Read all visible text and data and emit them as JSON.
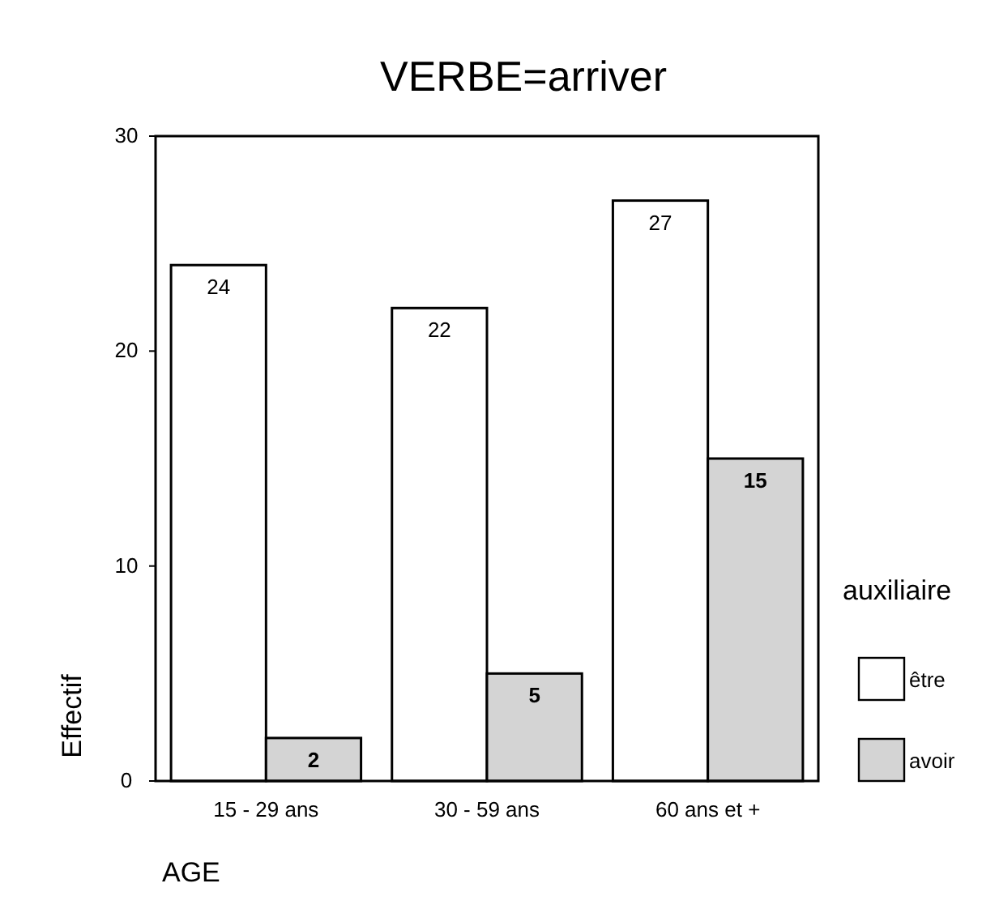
{
  "chart_data": {
    "type": "bar",
    "title": "VERBE=arriver",
    "xlabel": "AGE",
    "ylabel": "Effectif",
    "legend_title": "auxiliaire",
    "categories": [
      "15 - 29 ans",
      "30 - 59 ans",
      "60 ans et +"
    ],
    "series": [
      {
        "name": "être",
        "color": "#ffffff",
        "values": [
          24,
          22,
          27
        ]
      },
      {
        "name": "avoir",
        "color": "#d4d4d4",
        "values": [
          2,
          5,
          15
        ]
      }
    ],
    "ylim": [
      0,
      30
    ],
    "yticks": [
      0,
      10,
      20,
      30
    ],
    "data_labels": true,
    "legend": "right",
    "grid": false
  }
}
